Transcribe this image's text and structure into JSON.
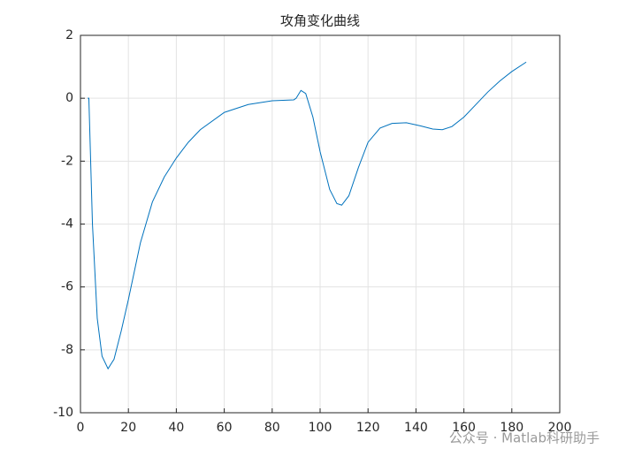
{
  "chart_data": {
    "type": "line",
    "title": "攻角变化曲线",
    "x": [
      3,
      3.5,
      5,
      7,
      9,
      11.5,
      14,
      17,
      20,
      25,
      30,
      35,
      40,
      45,
      50,
      60,
      70,
      80,
      89,
      90,
      92,
      94,
      97,
      100,
      104,
      107,
      109,
      112,
      116,
      120,
      125,
      130,
      136,
      142,
      147,
      151,
      155,
      160,
      165,
      170,
      175,
      180,
      186
    ],
    "series": [
      {
        "color": "#0072bd",
        "values": [
          0,
          0,
          -4,
          -7,
          -8.2,
          -8.6,
          -8.3,
          -7.4,
          -6.4,
          -4.6,
          -3.3,
          -2.5,
          -1.9,
          -1.4,
          -1.0,
          -0.45,
          -0.2,
          -0.08,
          -0.05,
          0,
          0.25,
          0.15,
          -0.6,
          -1.7,
          -2.9,
          -3.35,
          -3.4,
          -3.1,
          -2.2,
          -1.4,
          -0.95,
          -0.8,
          -0.78,
          -0.88,
          -0.98,
          -1.0,
          -0.9,
          -0.6,
          -0.2,
          0.2,
          0.55,
          0.85,
          1.15
        ]
      }
    ],
    "xlim": [
      0,
      200
    ],
    "xticks": [
      0,
      20,
      40,
      60,
      80,
      100,
      120,
      140,
      160,
      180,
      200
    ],
    "ylim": [
      -10,
      2
    ],
    "yticks": [
      -10,
      -8,
      -6,
      -4,
      -2,
      0,
      2
    ],
    "grid": true,
    "watermark": "公众号 · Matlab科研助手"
  }
}
